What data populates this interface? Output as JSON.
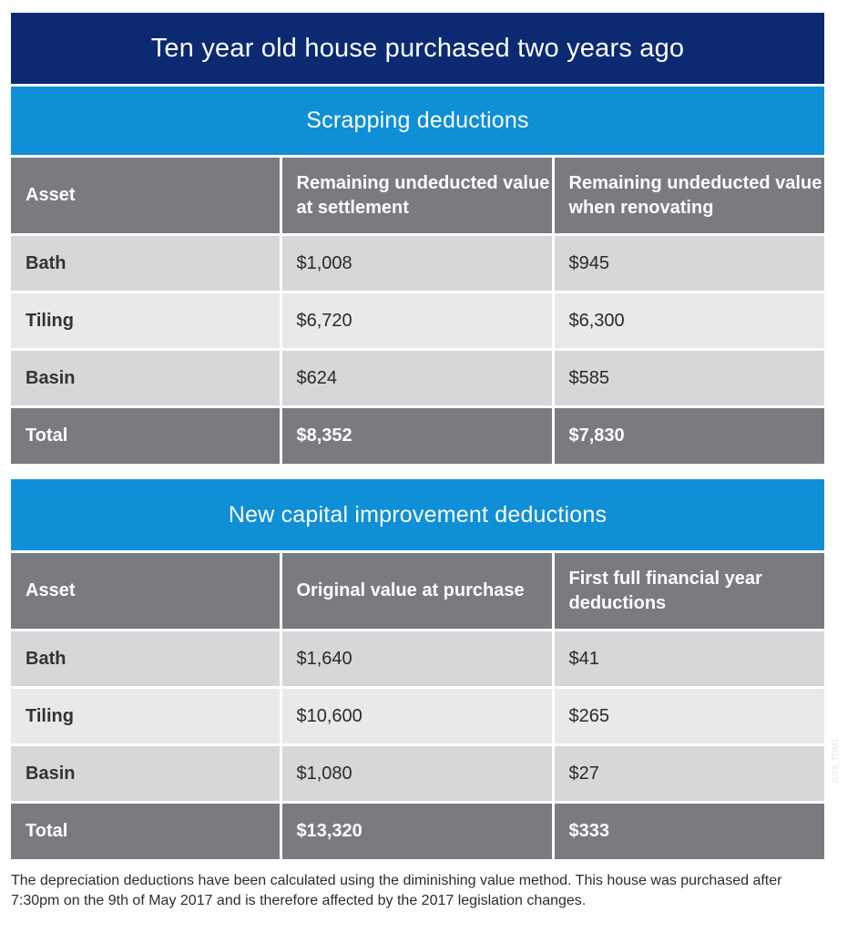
{
  "title": "Ten year old house purchased two years ago",
  "sections": [
    {
      "heading": "Scrapping deductions",
      "columns": [
        "Asset",
        "Remaining undeducted value at settlement",
        "Remaining undeducted value when renovating"
      ],
      "rows": [
        [
          "Bath",
          "$1,008",
          "$945"
        ],
        [
          "Tiling",
          "$6,720",
          "$6,300"
        ],
        [
          "Basin",
          "$624",
          "$585"
        ]
      ],
      "total": [
        "Total",
        "$8,352",
        "$7,830"
      ]
    },
    {
      "heading": "New capital improvement deductions",
      "columns": [
        "Asset",
        "Original value at purchase",
        "First full financial year deductions"
      ],
      "rows": [
        [
          "Bath",
          "$1,640",
          "$41"
        ],
        [
          "Tiling",
          "$10,600",
          "$265"
        ],
        [
          "Basin",
          "$1,080",
          "$27"
        ]
      ],
      "total": [
        "Total",
        "$13,320",
        "$333"
      ]
    }
  ],
  "footnote": "The depreciation deductions have been calculated using the diminishing value method. This house was purchased after 7:30pm on the 9th of May 2017 and is therefore affected by the 2017 legislation changes.",
  "side_mark": "2018_TDM1"
}
